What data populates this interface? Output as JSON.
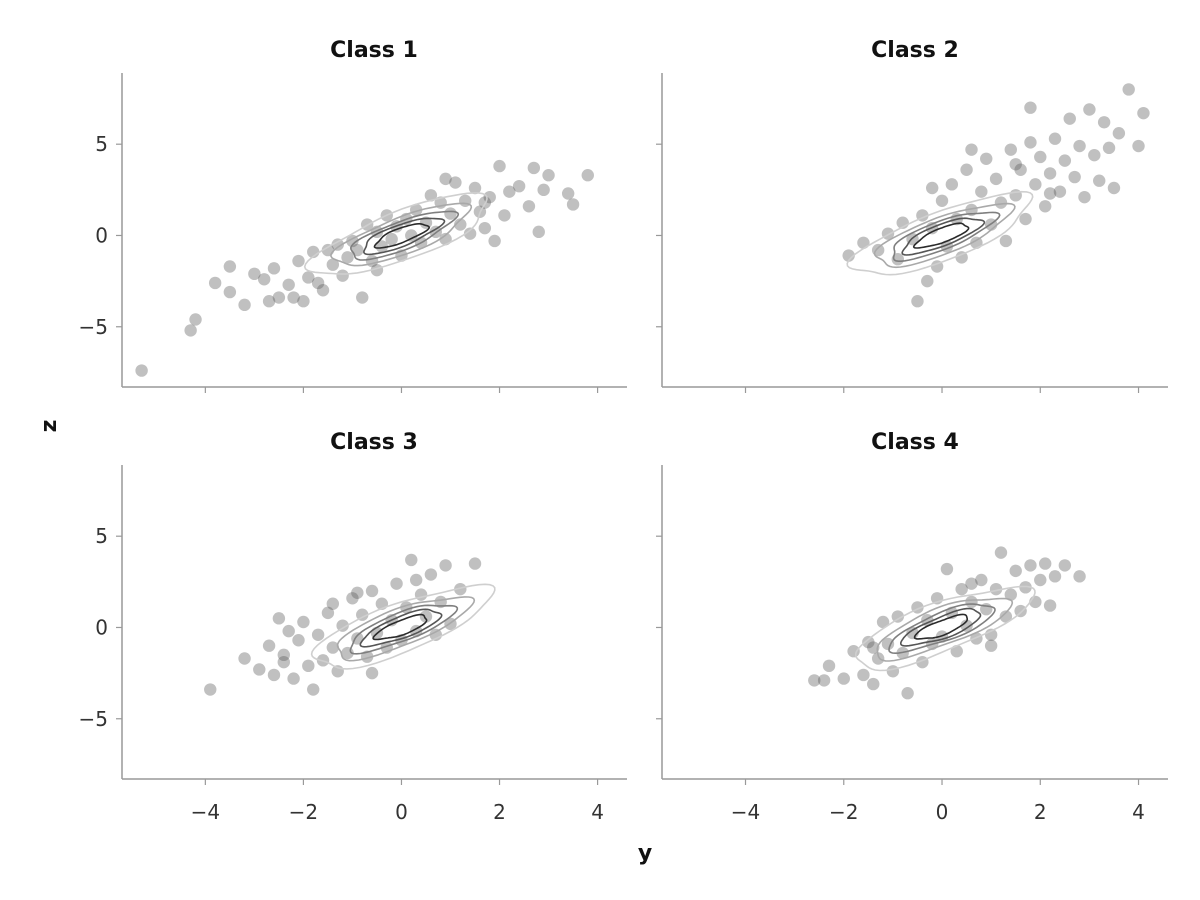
{
  "chart_data": {
    "type": "scatter",
    "xlabel": "y",
    "ylabel": "z",
    "xlim": [
      -5.7,
      4.6
    ],
    "ylim": [
      -8.3,
      8.9
    ],
    "x_ticks": [
      -4,
      -2,
      0,
      2,
      4
    ],
    "x_tick_labels": [
      "−4",
      "−2",
      "0",
      "2",
      "4"
    ],
    "y_ticks": [
      -5,
      0,
      5
    ],
    "y_tick_labels": [
      "−5",
      "0",
      "5"
    ],
    "point_color": "#595959",
    "contour_colors": [
      "#cfcfcf",
      "#a9a9a9",
      "#7f7f7f",
      "#555555",
      "#2b2b2b"
    ],
    "panels": [
      {
        "title": "Class 1",
        "center": [
          0,
          0
        ],
        "points": [
          [
            -5.3,
            -7.4
          ],
          [
            -4.3,
            -5.2
          ],
          [
            -4.2,
            -4.6
          ],
          [
            -3.8,
            -2.6
          ],
          [
            -3.5,
            -1.7
          ],
          [
            -3.5,
            -3.1
          ],
          [
            -3.2,
            -3.8
          ],
          [
            -3.0,
            -2.1
          ],
          [
            -2.7,
            -3.6
          ],
          [
            -2.6,
            -1.8
          ],
          [
            -2.5,
            -3.4
          ],
          [
            -2.3,
            -2.7
          ],
          [
            -2.2,
            -3.4
          ],
          [
            -2.1,
            -1.4
          ],
          [
            -2.0,
            -3.6
          ],
          [
            -1.9,
            -2.3
          ],
          [
            -1.8,
            -0.9
          ],
          [
            -1.7,
            -2.6
          ],
          [
            -1.6,
            -3.0
          ],
          [
            -1.5,
            -0.8
          ],
          [
            -1.4,
            -1.6
          ],
          [
            -1.3,
            -0.5
          ],
          [
            -1.2,
            -2.2
          ],
          [
            -1.1,
            -1.2
          ],
          [
            -1.0,
            -0.3
          ],
          [
            -0.9,
            -0.8
          ],
          [
            -0.8,
            -3.4
          ],
          [
            -0.7,
            0.6
          ],
          [
            -0.6,
            -1.4
          ],
          [
            -0.5,
            0.2
          ],
          [
            -0.4,
            -0.6
          ],
          [
            -0.3,
            1.1
          ],
          [
            -0.2,
            -0.2
          ],
          [
            -0.1,
            0.5
          ],
          [
            0.0,
            -1.1
          ],
          [
            0.1,
            0.9
          ],
          [
            0.2,
            0.0
          ],
          [
            0.3,
            1.4
          ],
          [
            0.4,
            -0.4
          ],
          [
            0.5,
            0.7
          ],
          [
            0.6,
            2.2
          ],
          [
            0.7,
            0.2
          ],
          [
            0.8,
            1.8
          ],
          [
            0.9,
            -0.2
          ],
          [
            1.0,
            1.2
          ],
          [
            1.1,
            2.9
          ],
          [
            1.2,
            0.6
          ],
          [
            1.3,
            1.9
          ],
          [
            1.4,
            0.1
          ],
          [
            1.5,
            2.6
          ],
          [
            1.6,
            1.3
          ],
          [
            1.7,
            0.4
          ],
          [
            1.8,
            2.1
          ],
          [
            1.9,
            -0.3
          ],
          [
            2.0,
            3.8
          ],
          [
            2.1,
            1.1
          ],
          [
            2.2,
            2.4
          ],
          [
            2.4,
            2.7
          ],
          [
            2.6,
            1.6
          ],
          [
            2.7,
            3.7
          ],
          [
            2.8,
            0.2
          ],
          [
            2.9,
            2.5
          ],
          [
            3.0,
            3.3
          ],
          [
            3.4,
            2.3
          ],
          [
            3.5,
            1.7
          ],
          [
            3.8,
            3.3
          ],
          [
            -2.8,
            -2.4
          ],
          [
            -0.5,
            -1.9
          ],
          [
            0.9,
            3.1
          ],
          [
            1.7,
            1.8
          ]
        ]
      },
      {
        "title": "Class 2",
        "center": [
          0,
          0
        ],
        "points": [
          [
            -1.9,
            -1.1
          ],
          [
            -1.6,
            -0.4
          ],
          [
            -1.3,
            -0.8
          ],
          [
            -1.1,
            0.1
          ],
          [
            -0.9,
            -1.3
          ],
          [
            -0.8,
            0.7
          ],
          [
            -0.6,
            -0.2
          ],
          [
            -0.5,
            -3.6
          ],
          [
            -0.4,
            1.1
          ],
          [
            -0.3,
            -2.5
          ],
          [
            -0.2,
            0.4
          ],
          [
            -0.1,
            -1.7
          ],
          [
            0.0,
            1.9
          ],
          [
            0.1,
            -0.6
          ],
          [
            0.2,
            2.8
          ],
          [
            0.3,
            0.9
          ],
          [
            0.4,
            -1.2
          ],
          [
            0.5,
            3.6
          ],
          [
            0.6,
            1.4
          ],
          [
            0.7,
            -0.4
          ],
          [
            0.8,
            2.4
          ],
          [
            0.9,
            4.2
          ],
          [
            1.0,
            0.6
          ],
          [
            1.1,
            3.1
          ],
          [
            1.2,
            1.8
          ],
          [
            1.3,
            -0.3
          ],
          [
            1.4,
            4.7
          ],
          [
            1.5,
            2.2
          ],
          [
            1.6,
            3.6
          ],
          [
            1.7,
            0.9
          ],
          [
            1.8,
            5.1
          ],
          [
            1.9,
            2.8
          ],
          [
            2.0,
            4.3
          ],
          [
            2.1,
            1.6
          ],
          [
            2.2,
            3.4
          ],
          [
            2.3,
            5.3
          ],
          [
            2.4,
            2.4
          ],
          [
            2.5,
            4.1
          ],
          [
            2.6,
            6.4
          ],
          [
            2.7,
            3.2
          ],
          [
            2.8,
            4.9
          ],
          [
            2.9,
            2.1
          ],
          [
            3.0,
            6.9
          ],
          [
            3.1,
            4.4
          ],
          [
            3.2,
            3.0
          ],
          [
            3.3,
            6.2
          ],
          [
            3.4,
            4.8
          ],
          [
            3.5,
            2.6
          ],
          [
            3.6,
            5.6
          ],
          [
            3.8,
            8.0
          ],
          [
            4.0,
            4.9
          ],
          [
            4.1,
            6.7
          ],
          [
            1.8,
            7.0
          ],
          [
            -0.2,
            2.6
          ],
          [
            0.6,
            4.7
          ],
          [
            1.5,
            3.9
          ],
          [
            2.2,
            2.3
          ]
        ]
      },
      {
        "title": "Class 3",
        "center": [
          0,
          0
        ],
        "points": [
          [
            -3.9,
            -3.4
          ],
          [
            -3.2,
            -1.7
          ],
          [
            -2.9,
            -2.3
          ],
          [
            -2.7,
            -1.0
          ],
          [
            -2.6,
            -2.6
          ],
          [
            -2.5,
            0.5
          ],
          [
            -2.4,
            -1.5
          ],
          [
            -2.3,
            -0.2
          ],
          [
            -2.2,
            -2.8
          ],
          [
            -2.1,
            -0.7
          ],
          [
            -2.0,
            0.3
          ],
          [
            -1.9,
            -2.1
          ],
          [
            -1.8,
            -3.4
          ],
          [
            -1.7,
            -0.4
          ],
          [
            -1.6,
            -1.8
          ],
          [
            -1.5,
            0.8
          ],
          [
            -1.4,
            -1.1
          ],
          [
            -1.3,
            -2.4
          ],
          [
            -1.2,
            0.1
          ],
          [
            -1.1,
            -1.4
          ],
          [
            -1.0,
            1.6
          ],
          [
            -0.9,
            -0.6
          ],
          [
            -0.8,
            0.7
          ],
          [
            -0.7,
            -1.6
          ],
          [
            -0.6,
            2.0
          ],
          [
            -0.5,
            -0.3
          ],
          [
            -0.4,
            1.3
          ],
          [
            -0.3,
            -1.1
          ],
          [
            -0.2,
            0.4
          ],
          [
            -0.1,
            2.4
          ],
          [
            0.0,
            -0.7
          ],
          [
            0.1,
            1.1
          ],
          [
            0.2,
            3.7
          ],
          [
            0.3,
            -0.2
          ],
          [
            0.4,
            1.8
          ],
          [
            0.5,
            0.6
          ],
          [
            0.6,
            2.9
          ],
          [
            0.7,
            -0.4
          ],
          [
            0.8,
            1.4
          ],
          [
            0.9,
            3.4
          ],
          [
            1.0,
            0.2
          ],
          [
            1.2,
            2.1
          ],
          [
            1.5,
            3.5
          ],
          [
            -0.6,
            -2.5
          ],
          [
            -1.4,
            1.3
          ],
          [
            -0.9,
            1.9
          ],
          [
            0.3,
            2.6
          ],
          [
            -2.4,
            -1.9
          ]
        ]
      },
      {
        "title": "Class 4",
        "center": [
          0,
          0
        ],
        "points": [
          [
            -2.6,
            -2.9
          ],
          [
            -2.4,
            -2.9
          ],
          [
            -2.3,
            -2.1
          ],
          [
            -2.0,
            -2.8
          ],
          [
            -1.8,
            -1.3
          ],
          [
            -1.6,
            -2.6
          ],
          [
            -1.5,
            -0.8
          ],
          [
            -1.4,
            -3.1
          ],
          [
            -1.3,
            -1.7
          ],
          [
            -1.2,
            0.3
          ],
          [
            -1.1,
            -0.9
          ],
          [
            -1.0,
            -2.4
          ],
          [
            -0.9,
            0.6
          ],
          [
            -0.8,
            -1.4
          ],
          [
            -0.7,
            -3.6
          ],
          [
            -0.6,
            -0.3
          ],
          [
            -0.5,
            1.1
          ],
          [
            -0.4,
            -1.9
          ],
          [
            -0.3,
            0.4
          ],
          [
            -0.2,
            -0.9
          ],
          [
            -0.1,
            1.6
          ],
          [
            0.0,
            -0.5
          ],
          [
            0.1,
            3.2
          ],
          [
            0.2,
            0.8
          ],
          [
            0.3,
            -1.3
          ],
          [
            0.4,
            2.1
          ],
          [
            0.5,
            0.1
          ],
          [
            0.6,
            1.4
          ],
          [
            0.7,
            -0.6
          ],
          [
            0.8,
            2.6
          ],
          [
            0.9,
            1.0
          ],
          [
            1.0,
            -1.0
          ],
          [
            1.1,
            2.1
          ],
          [
            1.2,
            4.1
          ],
          [
            1.3,
            0.6
          ],
          [
            1.4,
            1.8
          ],
          [
            1.5,
            3.1
          ],
          [
            1.6,
            0.9
          ],
          [
            1.7,
            2.2
          ],
          [
            1.8,
            3.4
          ],
          [
            1.9,
            1.4
          ],
          [
            2.0,
            2.6
          ],
          [
            2.1,
            3.5
          ],
          [
            2.2,
            1.2
          ],
          [
            2.3,
            2.8
          ],
          [
            2.5,
            3.4
          ],
          [
            2.8,
            2.8
          ],
          [
            1.0,
            -0.4
          ],
          [
            -1.4,
            -1.1
          ],
          [
            0.6,
            2.4
          ]
        ]
      }
    ]
  }
}
